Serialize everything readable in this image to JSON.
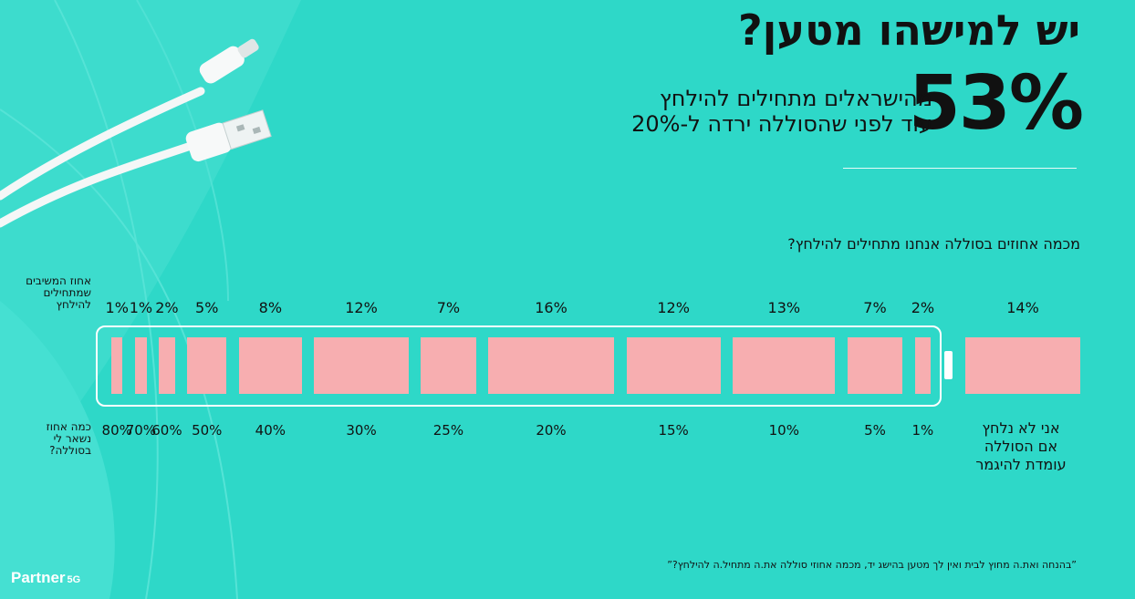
{
  "title": "יש למישהו מטען?",
  "headline_stat": "53%",
  "headline_text": {
    "line1": "מהישראלים מתחילים להילחץ",
    "line2": "עוד לפני שהסוללה ירדה ל-20%"
  },
  "question": "מכמה אחוזים בסוללה אנחנו מתחילים להילחץ?",
  "side_labels": {
    "top": [
      "אחוז המשיבים",
      "שמתחילים",
      "להילחץ"
    ],
    "bottom": [
      "כמה אחוז",
      "נשאר לי",
      "בסוללה?"
    ]
  },
  "chart_data": {
    "type": "bar",
    "categories": [
      "80%",
      "70%",
      "60%",
      "50%",
      "40%",
      "30%",
      "25%",
      "20%",
      "15%",
      "10%",
      "5%",
      "1%",
      "אני לא נלחץ אם הסוללה עומדת להיגמר"
    ],
    "values": [
      1,
      1,
      2,
      5,
      8,
      12,
      7,
      16,
      12,
      13,
      7,
      2,
      14
    ],
    "value_labels": [
      "1%",
      "1%",
      "2%",
      "5%",
      "8%",
      "12%",
      "7%",
      "16%",
      "12%",
      "13%",
      "7%",
      "2%",
      "14%"
    ],
    "none_option_lines": [
      "אני לא נלחץ",
      "אם הסוללה",
      "עומדת להיגמר"
    ],
    "ylabel": "אחוז המשיבים שמתחילים להילחץ",
    "xlabel": "כמה אחוז נשאר לי בסוללה?",
    "bar_color": "#f7aeb0"
  },
  "footnote": "”בהנחה ואת.ה מחוץ לבית ואין לך מטען בהישג יד, מכמה אחוזי סוללה את.ה מתחיל.ה להילחץ?”",
  "logo": {
    "brand": "Partner",
    "suffix": "5G"
  },
  "colors": {
    "background": "#2ed8c8",
    "bar": "#f7aeb0",
    "outline": "#ffffff"
  }
}
